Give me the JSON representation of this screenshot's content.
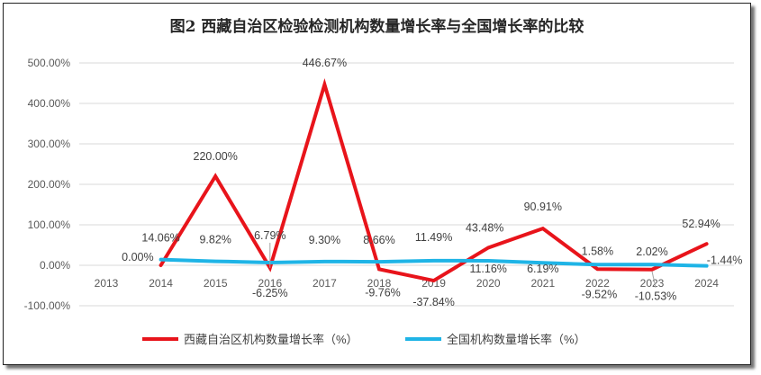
{
  "chart_data": {
    "type": "line",
    "title": "图2 西藏自治区检验检测机构数量增长率与全国增长率的比较",
    "categories": [
      "2013",
      "2014",
      "2015",
      "2016",
      "2017",
      "2018",
      "2019",
      "2020",
      "2021",
      "2022",
      "2023",
      "2024"
    ],
    "y_ticks": [
      "500.00%",
      "400.00%",
      "300.00%",
      "200.00%",
      "100.00%",
      "0.00%",
      "-100.00%"
    ],
    "ylim": [
      -100,
      500
    ],
    "grid": true,
    "legend_position": "bottom",
    "series": [
      {
        "name": "西藏自治区机构数量增长率（%）",
        "color": "#e8141b",
        "x": [
          "2014",
          "2015",
          "2016",
          "2017",
          "2018",
          "2019",
          "2020",
          "2021",
          "2022",
          "2023",
          "2024"
        ],
        "values": [
          0.0,
          220.0,
          -6.25,
          446.67,
          -9.76,
          -37.84,
          43.48,
          90.91,
          -9.52,
          -10.53,
          52.94
        ],
        "labels": [
          "0.00%",
          "220.00%",
          "-6.25%",
          "446.67%",
          "-9.76%",
          "-37.84%",
          "43.48%",
          "90.91%",
          "-9.52%",
          "-10.53%",
          "52.94%"
        ]
      },
      {
        "name": "全国机构数量增长率（%）",
        "color": "#1fb4e6",
        "x": [
          "2014",
          "2015",
          "2016",
          "2017",
          "2018",
          "2019",
          "2020",
          "2021",
          "2022",
          "2023",
          "2024"
        ],
        "values": [
          14.06,
          9.82,
          6.79,
          9.3,
          8.66,
          11.49,
          11.16,
          6.19,
          1.58,
          2.02,
          -1.44
        ],
        "labels": [
          "14.06%",
          "9.82%",
          "6.79%",
          "9.30%",
          "8.66%",
          "11.49%",
          "11.16%",
          "6.19%",
          "1.58%",
          "2.02%",
          "-1.44%"
        ]
      }
    ]
  }
}
